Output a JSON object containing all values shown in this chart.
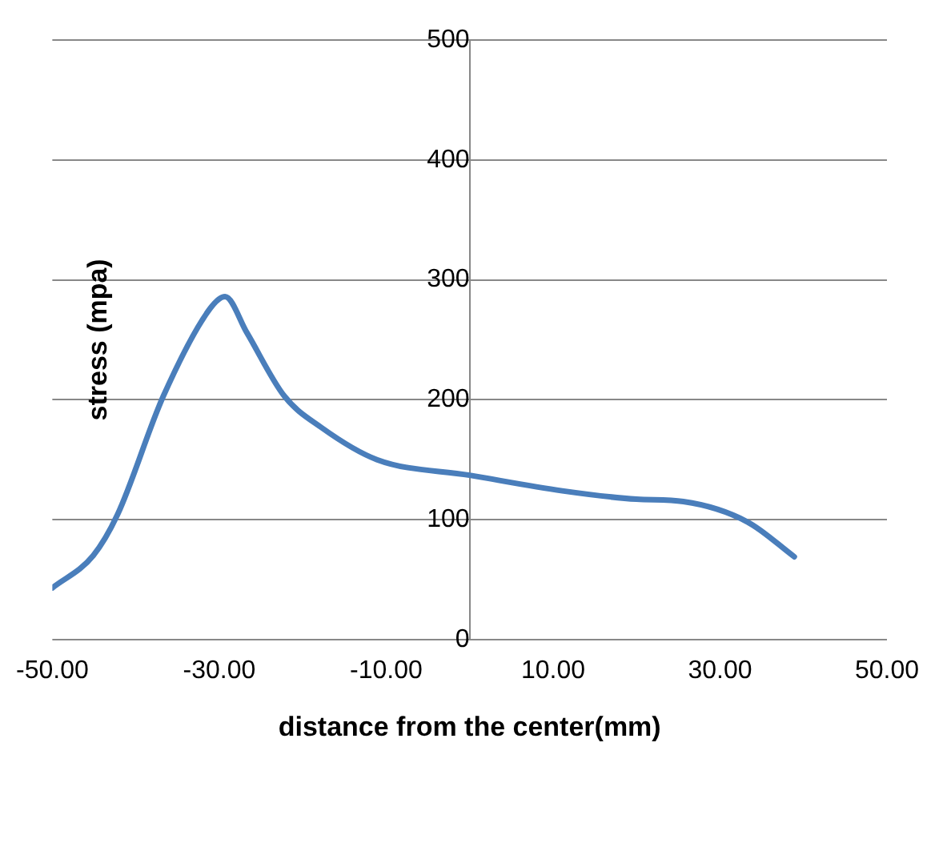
{
  "chart_data": {
    "type": "line",
    "xlabel": "distance from the center(mm)",
    "ylabel": "stress (mpa)",
    "x": [
      -50,
      -45.1,
      -42.2,
      -36.7,
      -31.1,
      -29.3,
      -26.7,
      -22.2,
      -17.8,
      -11.1,
      0,
      11.1,
      20,
      25.6,
      33.3,
      38.9
    ],
    "series": [
      {
        "color": "#4a7ebb",
        "values": [
          43,
          70,
          104,
          203,
          276,
          286,
          256,
          203,
          177,
          150,
          137,
          124,
          117,
          115,
          98,
          69
        ]
      }
    ],
    "xlim": [
      -50,
      50
    ],
    "xticks": [
      {
        "value": -50,
        "label": "-50.00"
      },
      {
        "value": -30,
        "label": "-30.00"
      },
      {
        "value": -10,
        "label": "-10.00"
      },
      {
        "value": 10,
        "label": "10.00"
      },
      {
        "value": 30,
        "label": "30.00"
      },
      {
        "value": 50,
        "label": "50.00"
      }
    ],
    "ylim": [
      0,
      500
    ],
    "yticks": [
      0,
      100,
      200,
      300,
      400,
      500
    ],
    "grid": "y",
    "legend": false,
    "marker": "none",
    "line_style": "solid"
  }
}
